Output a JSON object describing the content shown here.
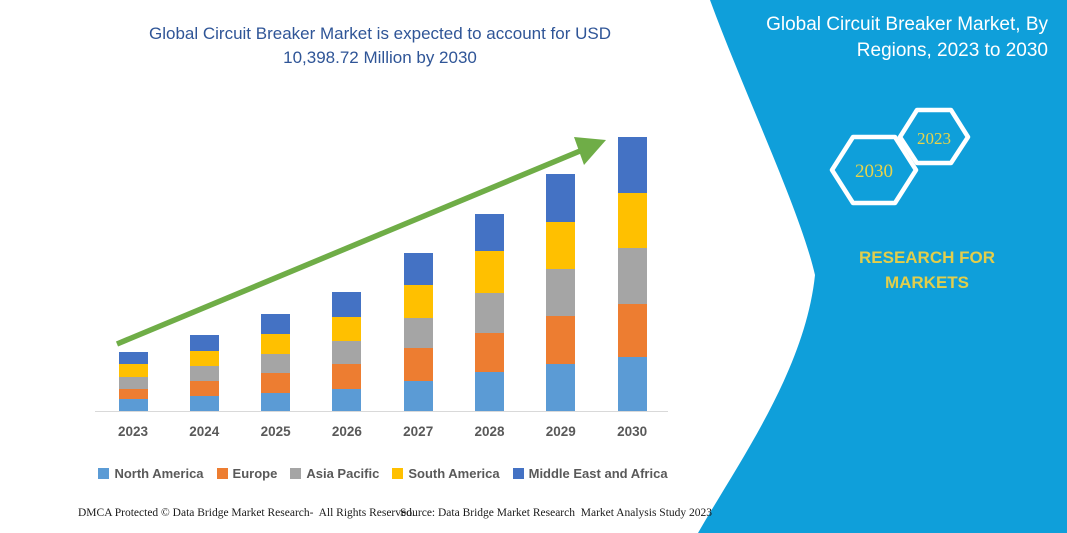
{
  "header": {
    "title_lines": [
      "Global Circuit Breaker Market is expected to account for USD",
      "10,398.72 Million by 2030"
    ]
  },
  "chart_data": {
    "type": "bar",
    "stacked": true,
    "title": "Global Circuit Breaker Market is expected to account for USD 10,398.72 Million by 2030",
    "unit": "USD Million",
    "categories": [
      "2023",
      "2024",
      "2025",
      "2026",
      "2027",
      "2028",
      "2029",
      "2030"
    ],
    "series": [
      {
        "name": "North America",
        "color": "#5B9BD5",
        "values": [
          445,
          560,
          695,
          845,
          1140,
          1480,
          1775,
          2035
        ]
      },
      {
        "name": "Europe",
        "color": "#ED7D31",
        "values": [
          407,
          590,
          750,
          950,
          1265,
          1480,
          1825,
          2035
        ]
      },
      {
        "name": "Asia Pacific",
        "color": "#A5A5A5",
        "values": [
          445,
          570,
          735,
          865,
          1140,
          1520,
          1785,
          2135
        ]
      },
      {
        "name": "South America",
        "color": "#FFC000",
        "values": [
          483,
          570,
          760,
          910,
          1255,
          1585,
          1795,
          2075
        ]
      },
      {
        "name": "Middle East and Africa",
        "color": "#4472C4",
        "values": [
          467,
          595,
          760,
          940,
          1190,
          1405,
          1815,
          2118.72
        ]
      }
    ],
    "totals_estimated": [
      2247,
      2885,
      3700,
      4510,
      5990,
      7470,
      8995,
      10398.72
    ],
    "final_value_label": "10,398.72",
    "xlabel": "",
    "ylabel": "",
    "y_axis_visible": false,
    "grid": false,
    "legend_position": "bottom",
    "trend_arrow": true,
    "trend_arrow_color": "#6FAD47"
  },
  "side_panel": {
    "title_lines": [
      "Global Circuit Breaker Market, By",
      "Regions, 2023 to 2030"
    ],
    "hexagons": [
      {
        "label": "2030"
      },
      {
        "label": "2023"
      }
    ],
    "brand_text": "RESEARCH FOR MARKETS",
    "background_color": "#0F9FDA",
    "text_color": "#FFFFFF",
    "accent_text_color": "#E2CE4B",
    "hexagon_label_color": "#E8D44A"
  },
  "footer": {
    "left": "DMCA Protected © Data Bridge Market Research-  All Rights Reserved.",
    "right": "Source: Data Bridge Market Research  Market Analysis Study 2023"
  },
  "colors": {
    "title_blue": "#2F5597",
    "axis_gray": "#D9D9D9",
    "label_gray": "#595959",
    "panel_teal": "#0F9FDA",
    "arrow_green": "#6FAD47"
  }
}
